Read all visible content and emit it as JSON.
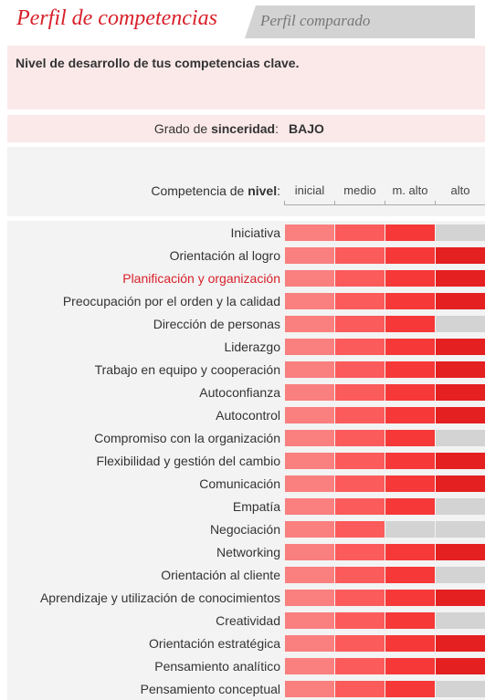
{
  "tabs": {
    "active": "Perfil de competencias",
    "inactive": "Perfil comparado"
  },
  "description": "Nivel de desarrollo de tus competencias clave.",
  "sincerity": {
    "label_prefix": "Grado de ",
    "label_bold": "sinceridad",
    "label_suffix": ":",
    "value": "BAJO"
  },
  "level_header": {
    "prefix": "Competencia de ",
    "bold": "nivel",
    "suffix": ":"
  },
  "colors": {
    "inicial": "#fa7f7f",
    "medio": "#fb5b5b",
    "m_alto": "#f63838",
    "alto": "#e42020",
    "empty": "#d3d3d3",
    "highlight_label": "#d8202a"
  },
  "chart_data": {
    "type": "bar",
    "levels": [
      "inicial",
      "medio",
      "m. alto",
      "alto"
    ],
    "categories": [
      "Iniciativa",
      "Orientación al logro",
      "Planificación y organización",
      "Preocupación por el orden y la calidad",
      "Dirección de personas",
      "Liderazgo",
      "Trabajo en equipo y cooperación",
      "Autoconfianza",
      "Autocontrol",
      "Compromiso con la organización",
      "Flexibilidad y gestión del cambio",
      "Comunicación",
      "Empatía",
      "Negociación",
      "Networking",
      "Orientación al cliente",
      "Aprendizaje y utilización de conocimientos",
      "Creatividad",
      "Orientación estratégica",
      "Pensamiento analítico",
      "Pensamiento conceptual"
    ],
    "values": [
      3,
      4,
      4,
      4,
      3,
      4,
      4,
      4,
      4,
      3,
      4,
      4,
      3,
      2,
      4,
      3,
      4,
      3,
      4,
      4,
      3
    ],
    "highlighted": "Planificación y organización"
  }
}
